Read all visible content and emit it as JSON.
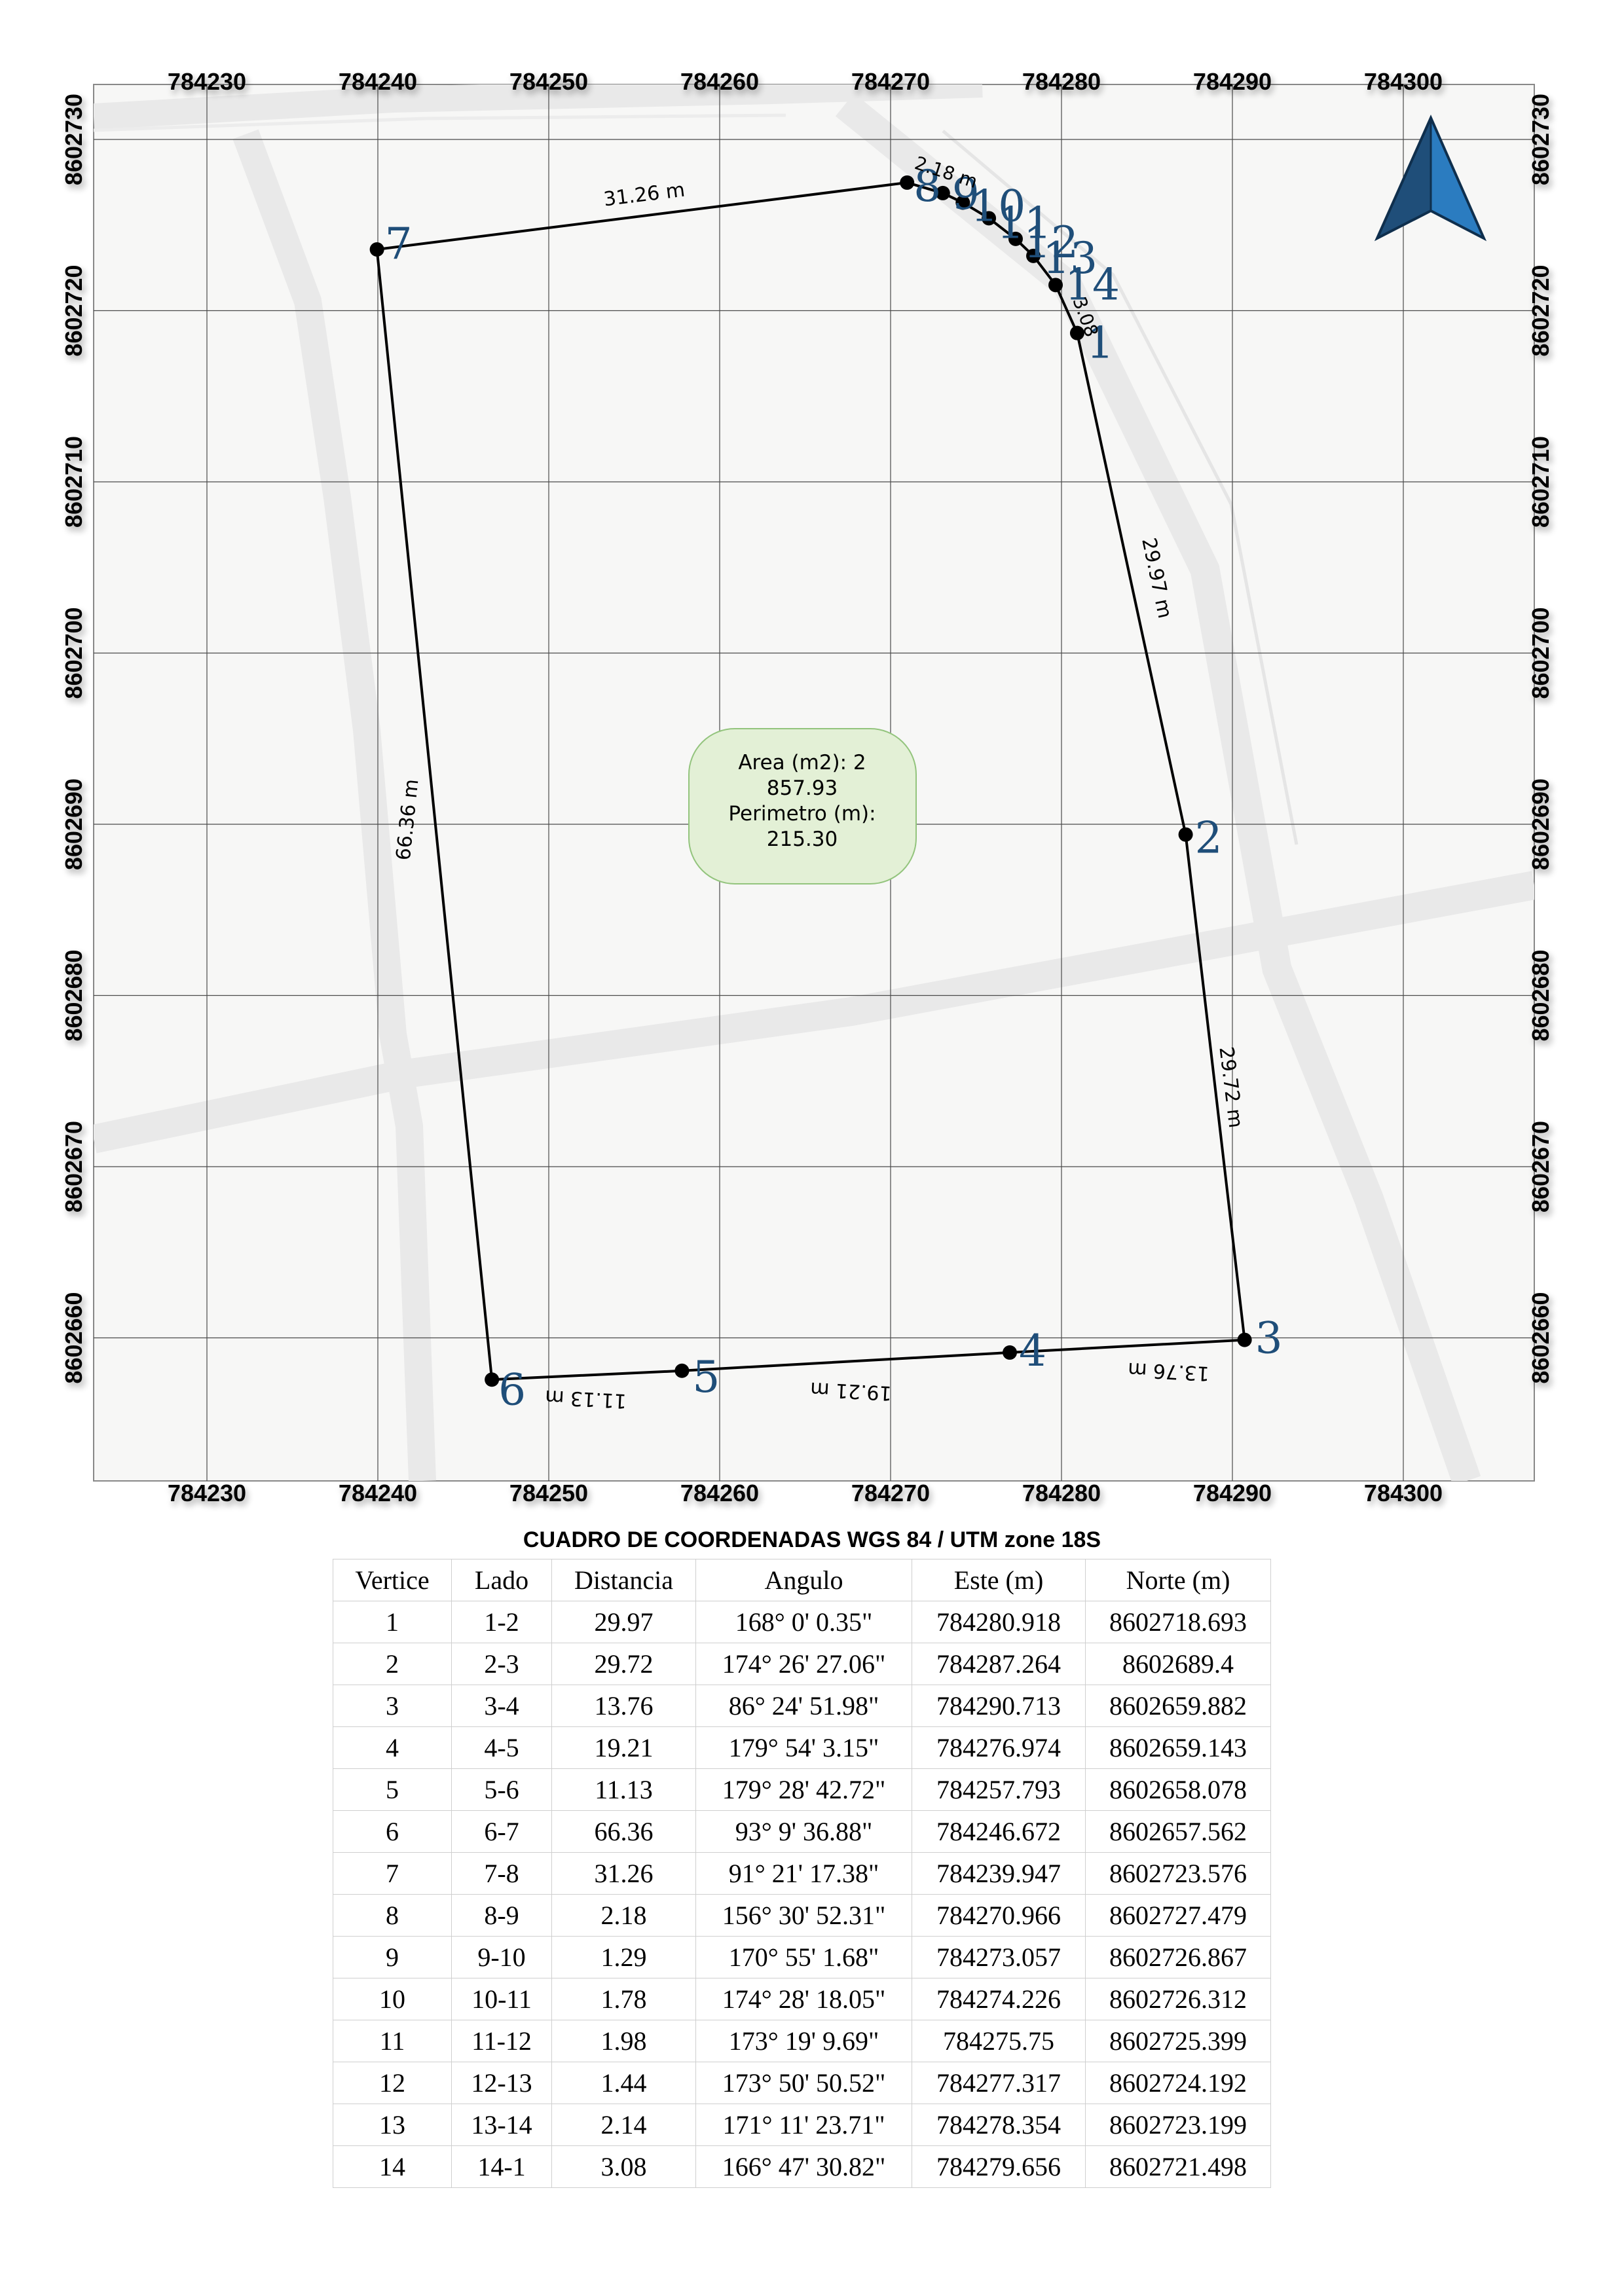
{
  "map": {
    "x_ticks": [
      "784230",
      "784240",
      "784250",
      "784260",
      "784270",
      "784280",
      "784290",
      "784300"
    ],
    "y_ticks": [
      "8602730",
      "8602720",
      "8602710",
      "8602700",
      "8602690",
      "8602680",
      "8602670",
      "8602660"
    ],
    "parcel_color": "#000000",
    "vertex_label_color": "#1f4e79",
    "background_color": "#f7f7f6",
    "road_color": "#ffffff",
    "area_box_fill": "#e3f0d6",
    "area_box_stroke": "#93c47d",
    "area_lines": [
      "Area (m2): 2",
      "857.93",
      "Perimetro (m):",
      "215.30"
    ],
    "vertex_labels": [
      "1",
      "2",
      "3",
      "4",
      "5",
      "6",
      "7",
      "8",
      "9",
      "10",
      "11",
      "12",
      "13",
      "14"
    ],
    "side_labels": {
      "s1_2": "29.97 m",
      "s2_3": "29.72 m",
      "s3_4": "13.76 m",
      "s4_5": "19.21 m",
      "s5_6": "11.13 m",
      "s6_7": "66.36 m",
      "s7_8": "31.26 m",
      "s8_9": "2.18 m",
      "s14_1": "3.08"
    },
    "north_arrow_icon": "north-arrow-icon"
  },
  "table": {
    "title": "CUADRO DE COORDENADAS WGS 84 / UTM zone 18S",
    "headers": [
      "Vertice",
      "Lado",
      "Distancia",
      "Angulo",
      "Este (m)",
      "Norte (m)"
    ],
    "rows": [
      [
        "1",
        "1-2",
        "29.97",
        "168° 0' 0.35\"",
        "784280.918",
        "8602718.693"
      ],
      [
        "2",
        "2-3",
        "29.72",
        "174° 26' 27.06\"",
        "784287.264",
        "8602689.4"
      ],
      [
        "3",
        "3-4",
        "13.76",
        "86° 24' 51.98\"",
        "784290.713",
        "8602659.882"
      ],
      [
        "4",
        "4-5",
        "19.21",
        "179° 54' 3.15\"",
        "784276.974",
        "8602659.143"
      ],
      [
        "5",
        "5-6",
        "11.13",
        "179° 28' 42.72\"",
        "784257.793",
        "8602658.078"
      ],
      [
        "6",
        "6-7",
        "66.36",
        "93° 9' 36.88\"",
        "784246.672",
        "8602657.562"
      ],
      [
        "7",
        "7-8",
        "31.26",
        "91° 21' 17.38\"",
        "784239.947",
        "8602723.576"
      ],
      [
        "8",
        "8-9",
        "2.18",
        "156° 30' 52.31\"",
        "784270.966",
        "8602727.479"
      ],
      [
        "9",
        "9-10",
        "1.29",
        "170° 55' 1.68\"",
        "784273.057",
        "8602726.867"
      ],
      [
        "10",
        "10-11",
        "1.78",
        "174° 28' 18.05\"",
        "784274.226",
        "8602726.312"
      ],
      [
        "11",
        "11-12",
        "1.98",
        "173° 19' 9.69\"",
        "784275.75",
        "8602725.399"
      ],
      [
        "12",
        "12-13",
        "1.44",
        "173° 50' 50.52\"",
        "784277.317",
        "8602724.192"
      ],
      [
        "13",
        "13-14",
        "2.14",
        "171° 11' 23.71\"",
        "784278.354",
        "8602723.199"
      ],
      [
        "14",
        "14-1",
        "3.08",
        "166° 47' 30.82\"",
        "784279.656",
        "8602721.498"
      ]
    ]
  }
}
